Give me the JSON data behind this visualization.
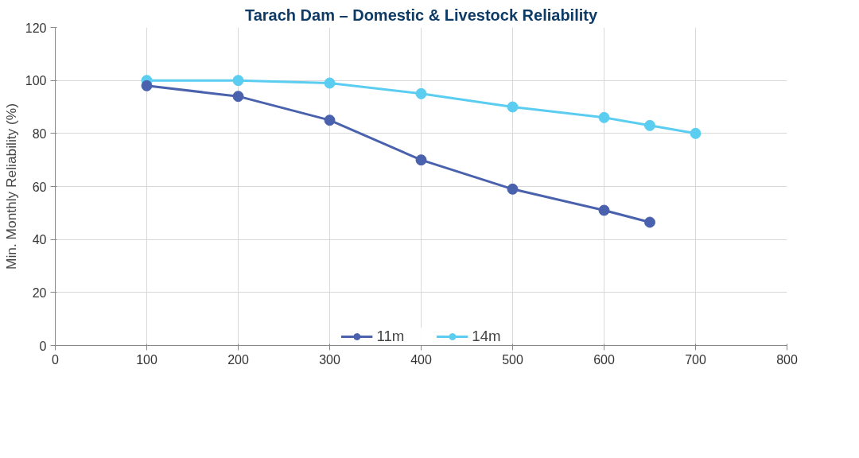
{
  "chart_data": {
    "type": "line",
    "title": "Tarach Dam – Domestic & Livestock Reliability",
    "ylabel": "Min. Monthly Reliability (%)",
    "xlim": [
      0,
      800
    ],
    "xticks": [
      0,
      100,
      200,
      300,
      400,
      500,
      600,
      700,
      800
    ],
    "ylim": [
      0,
      120
    ],
    "yticks": [
      0,
      20,
      40,
      60,
      80,
      100,
      120
    ],
    "grid": true,
    "legend": "bottom",
    "marker": "circle",
    "line_style": "solid",
    "series": [
      {
        "name": "11m",
        "color": "#4a62ad",
        "x": [
          100,
          200,
          300,
          400,
          500,
          600,
          650
        ],
        "values": [
          98,
          94,
          85,
          70,
          59,
          51,
          46.5
        ]
      },
      {
        "name": "14m",
        "color": "#5bcdf0",
        "x": [
          100,
          200,
          300,
          400,
          500,
          600,
          650,
          700
        ],
        "values": [
          100,
          100,
          99,
          95,
          90,
          86,
          83,
          80
        ]
      }
    ]
  }
}
